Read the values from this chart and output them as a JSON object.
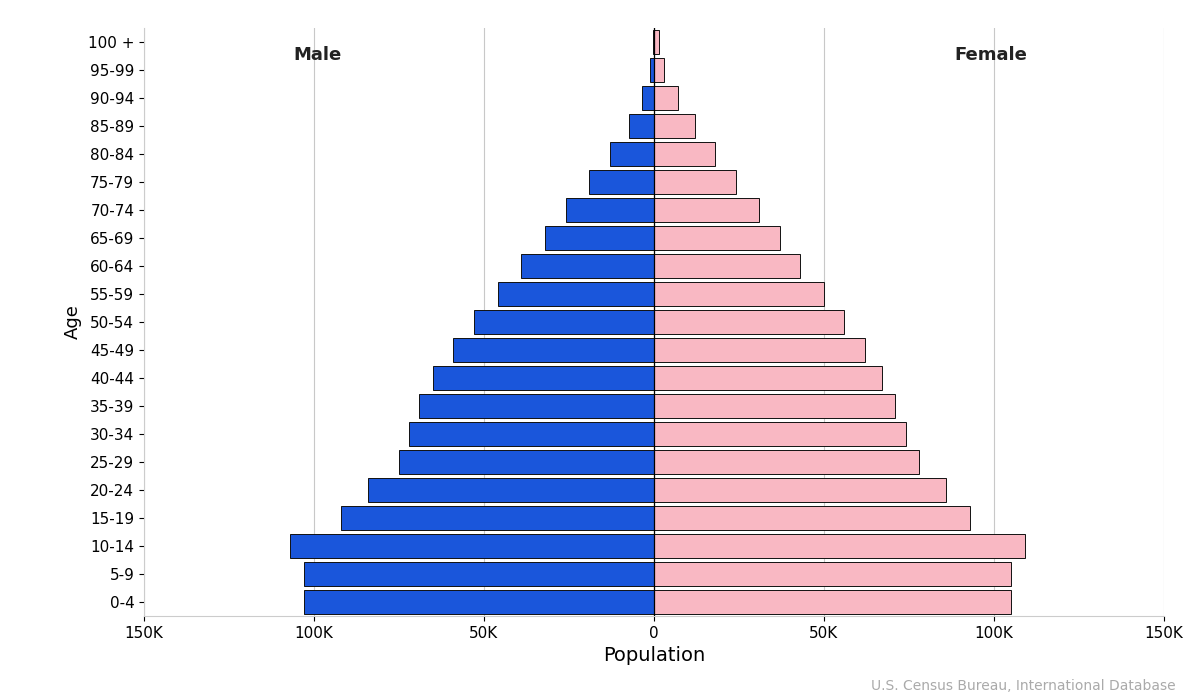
{
  "xlabel": "Population",
  "ylabel": "Age",
  "male_label": "Male",
  "female_label": "Female",
  "source": "U.S. Census Bureau, International Database",
  "age_groups": [
    "0-4",
    "5-9",
    "10-14",
    "15-19",
    "20-24",
    "25-29",
    "30-34",
    "35-39",
    "40-44",
    "45-49",
    "50-54",
    "55-59",
    "60-64",
    "65-69",
    "70-74",
    "75-79",
    "80-84",
    "85-89",
    "90-94",
    "95-99",
    "100 +"
  ],
  "male": [
    103000,
    103000,
    107000,
    92000,
    84000,
    75000,
    72000,
    69000,
    65000,
    59000,
    53000,
    46000,
    39000,
    32000,
    26000,
    19000,
    13000,
    7500,
    3500,
    1200,
    400
  ],
  "female": [
    105000,
    105000,
    109000,
    93000,
    86000,
    78000,
    74000,
    71000,
    67000,
    62000,
    56000,
    50000,
    43000,
    37000,
    31000,
    24000,
    18000,
    12000,
    7000,
    2800,
    1400
  ],
  "male_color": "#1a56db",
  "female_color": "#f9b8c3",
  "bar_edgecolor": "#111111",
  "bar_linewidth": 0.7,
  "background_color": "#ffffff",
  "grid_color": "#c8c8c8",
  "xlim": 150000,
  "xtick_values": [
    -150000,
    -100000,
    -50000,
    0,
    50000,
    100000,
    150000
  ],
  "xtick_labels": [
    "150K",
    "100K",
    "50K",
    "0",
    "50K",
    "100K",
    "150K"
  ],
  "male_fontsize": 13,
  "female_fontsize": 13,
  "xlabel_fontsize": 14,
  "ylabel_fontsize": 13,
  "tick_fontsize": 11,
  "source_fontsize": 10,
  "source_color": "#aaaaaa",
  "label_color": "#222222"
}
